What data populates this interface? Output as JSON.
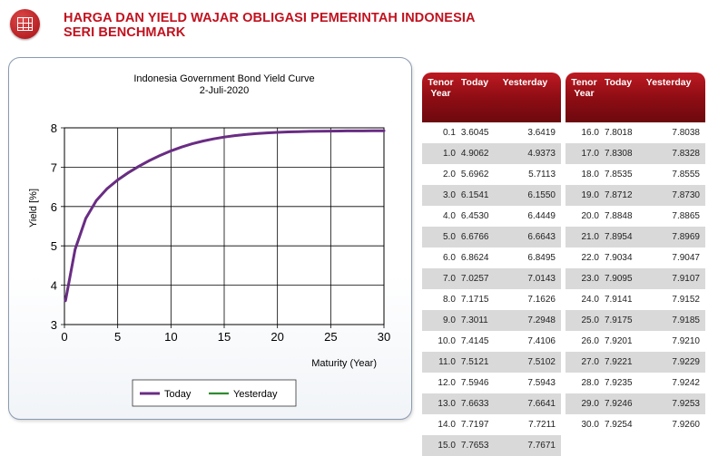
{
  "header": {
    "icon": "building-icon",
    "title_line1": "HARGA DAN YIELD WAJAR OBLIGASI PEMERINTAH INDONESIA",
    "title_line2": "SERI BENCHMARK",
    "accent_color": "#c1121f"
  },
  "chart_data": {
    "type": "line",
    "title": "Indonesia Government Bond Yield Curve",
    "subtitle": "2-Juli-2020",
    "xlabel": "Maturity (Year)",
    "ylabel": "Yield [%]",
    "xlim": [
      0,
      30
    ],
    "ylim": [
      3,
      8
    ],
    "xticks": [
      0,
      5,
      10,
      15,
      20,
      25,
      30
    ],
    "yticks": [
      3,
      4,
      5,
      6,
      7,
      8
    ],
    "grid": true,
    "legend": "bottom-center",
    "x": [
      0.1,
      1,
      2,
      3,
      4,
      5,
      6,
      7,
      8,
      9,
      10,
      11,
      12,
      13,
      14,
      15,
      16,
      17,
      18,
      19,
      20,
      21,
      22,
      23,
      24,
      25,
      26,
      27,
      28,
      29,
      30
    ],
    "series": [
      {
        "name": "Today",
        "color": "#6a2c84",
        "values": [
          3.6045,
          4.9062,
          5.6962,
          6.1541,
          6.453,
          6.6766,
          6.8624,
          7.0257,
          7.1715,
          7.3011,
          7.4145,
          7.5121,
          7.5946,
          7.6633,
          7.7197,
          7.7653,
          7.8018,
          7.8308,
          7.8535,
          7.8712,
          7.8848,
          7.8954,
          7.9034,
          7.9095,
          7.9141,
          7.9175,
          7.9201,
          7.9221,
          7.9235,
          7.9246,
          7.9254
        ]
      },
      {
        "name": "Yesterday",
        "color": "#2e8b2e",
        "values": [
          3.6419,
          4.9373,
          5.7113,
          6.155,
          6.4449,
          6.6643,
          6.8495,
          7.0143,
          7.1626,
          7.2948,
          7.4106,
          7.5102,
          7.5943,
          7.6641,
          7.7211,
          7.7671,
          7.8038,
          7.8328,
          7.8555,
          7.873,
          7.8865,
          7.8969,
          7.9047,
          7.9107,
          7.9152,
          7.9185,
          7.921,
          7.9229,
          7.9242,
          7.9253,
          7.926
        ]
      }
    ]
  },
  "table": {
    "headers": {
      "tenor_line1": "Tenor",
      "tenor_line2": "Year",
      "today": "Today",
      "yesterday": "Yesterday"
    },
    "rows": [
      [
        "0.1",
        "3.6045",
        "3.6419"
      ],
      [
        "1.0",
        "4.9062",
        "4.9373"
      ],
      [
        "2.0",
        "5.6962",
        "5.7113"
      ],
      [
        "3.0",
        "6.1541",
        "6.1550"
      ],
      [
        "4.0",
        "6.4530",
        "6.4449"
      ],
      [
        "5.0",
        "6.6766",
        "6.6643"
      ],
      [
        "6.0",
        "6.8624",
        "6.8495"
      ],
      [
        "7.0",
        "7.0257",
        "7.0143"
      ],
      [
        "8.0",
        "7.1715",
        "7.1626"
      ],
      [
        "9.0",
        "7.3011",
        "7.2948"
      ],
      [
        "10.0",
        "7.4145",
        "7.4106"
      ],
      [
        "11.0",
        "7.5121",
        "7.5102"
      ],
      [
        "12.0",
        "7.5946",
        "7.5943"
      ],
      [
        "13.0",
        "7.6633",
        "7.6641"
      ],
      [
        "14.0",
        "7.7197",
        "7.7211"
      ],
      [
        "15.0",
        "7.7653",
        "7.7671"
      ],
      [
        "16.0",
        "7.8018",
        "7.8038"
      ],
      [
        "17.0",
        "7.8308",
        "7.8328"
      ],
      [
        "18.0",
        "7.8535",
        "7.8555"
      ],
      [
        "19.0",
        "7.8712",
        "7.8730"
      ],
      [
        "20.0",
        "7.8848",
        "7.8865"
      ],
      [
        "21.0",
        "7.8954",
        "7.8969"
      ],
      [
        "22.0",
        "7.9034",
        "7.9047"
      ],
      [
        "23.0",
        "7.9095",
        "7.9107"
      ],
      [
        "24.0",
        "7.9141",
        "7.9152"
      ],
      [
        "25.0",
        "7.9175",
        "7.9185"
      ],
      [
        "26.0",
        "7.9201",
        "7.9210"
      ],
      [
        "27.0",
        "7.9221",
        "7.9229"
      ],
      [
        "28.0",
        "7.9235",
        "7.9242"
      ],
      [
        "29.0",
        "7.9246",
        "7.9253"
      ],
      [
        "30.0",
        "7.9254",
        "7.9260"
      ]
    ]
  }
}
